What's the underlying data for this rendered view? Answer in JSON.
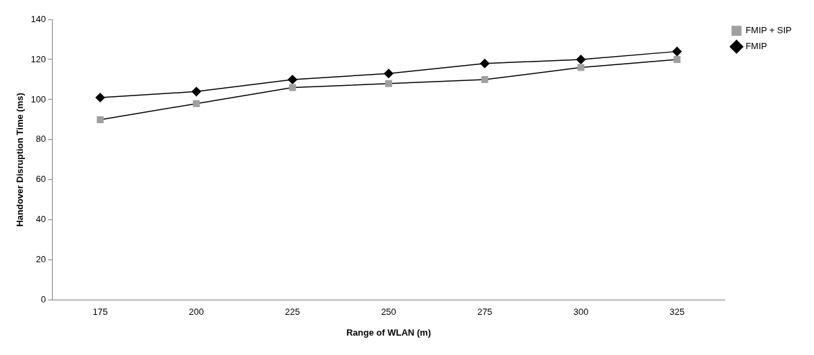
{
  "chart_data": {
    "type": "line",
    "xlabel": "Range of WLAN (m)",
    "ylabel": "Handover Disruption Time (ms)",
    "categories": [
      "175",
      "200",
      "225",
      "250",
      "275",
      "300",
      "325"
    ],
    "series": [
      {
        "name": "FMIP + SIP",
        "color": "#a0a0a0",
        "marker": "square",
        "values": [
          90,
          98,
          106,
          108,
          110,
          116,
          120
        ]
      },
      {
        "name": "FMIP",
        "color": "#000000",
        "marker": "diamond",
        "values": [
          101,
          104,
          110,
          113,
          118,
          120,
          124
        ]
      }
    ],
    "ylim": [
      0,
      140
    ],
    "yticks": [
      0,
      20,
      40,
      60,
      80,
      100,
      120,
      140
    ],
    "grid": false,
    "legend": "top right",
    "line_style": "solid"
  }
}
